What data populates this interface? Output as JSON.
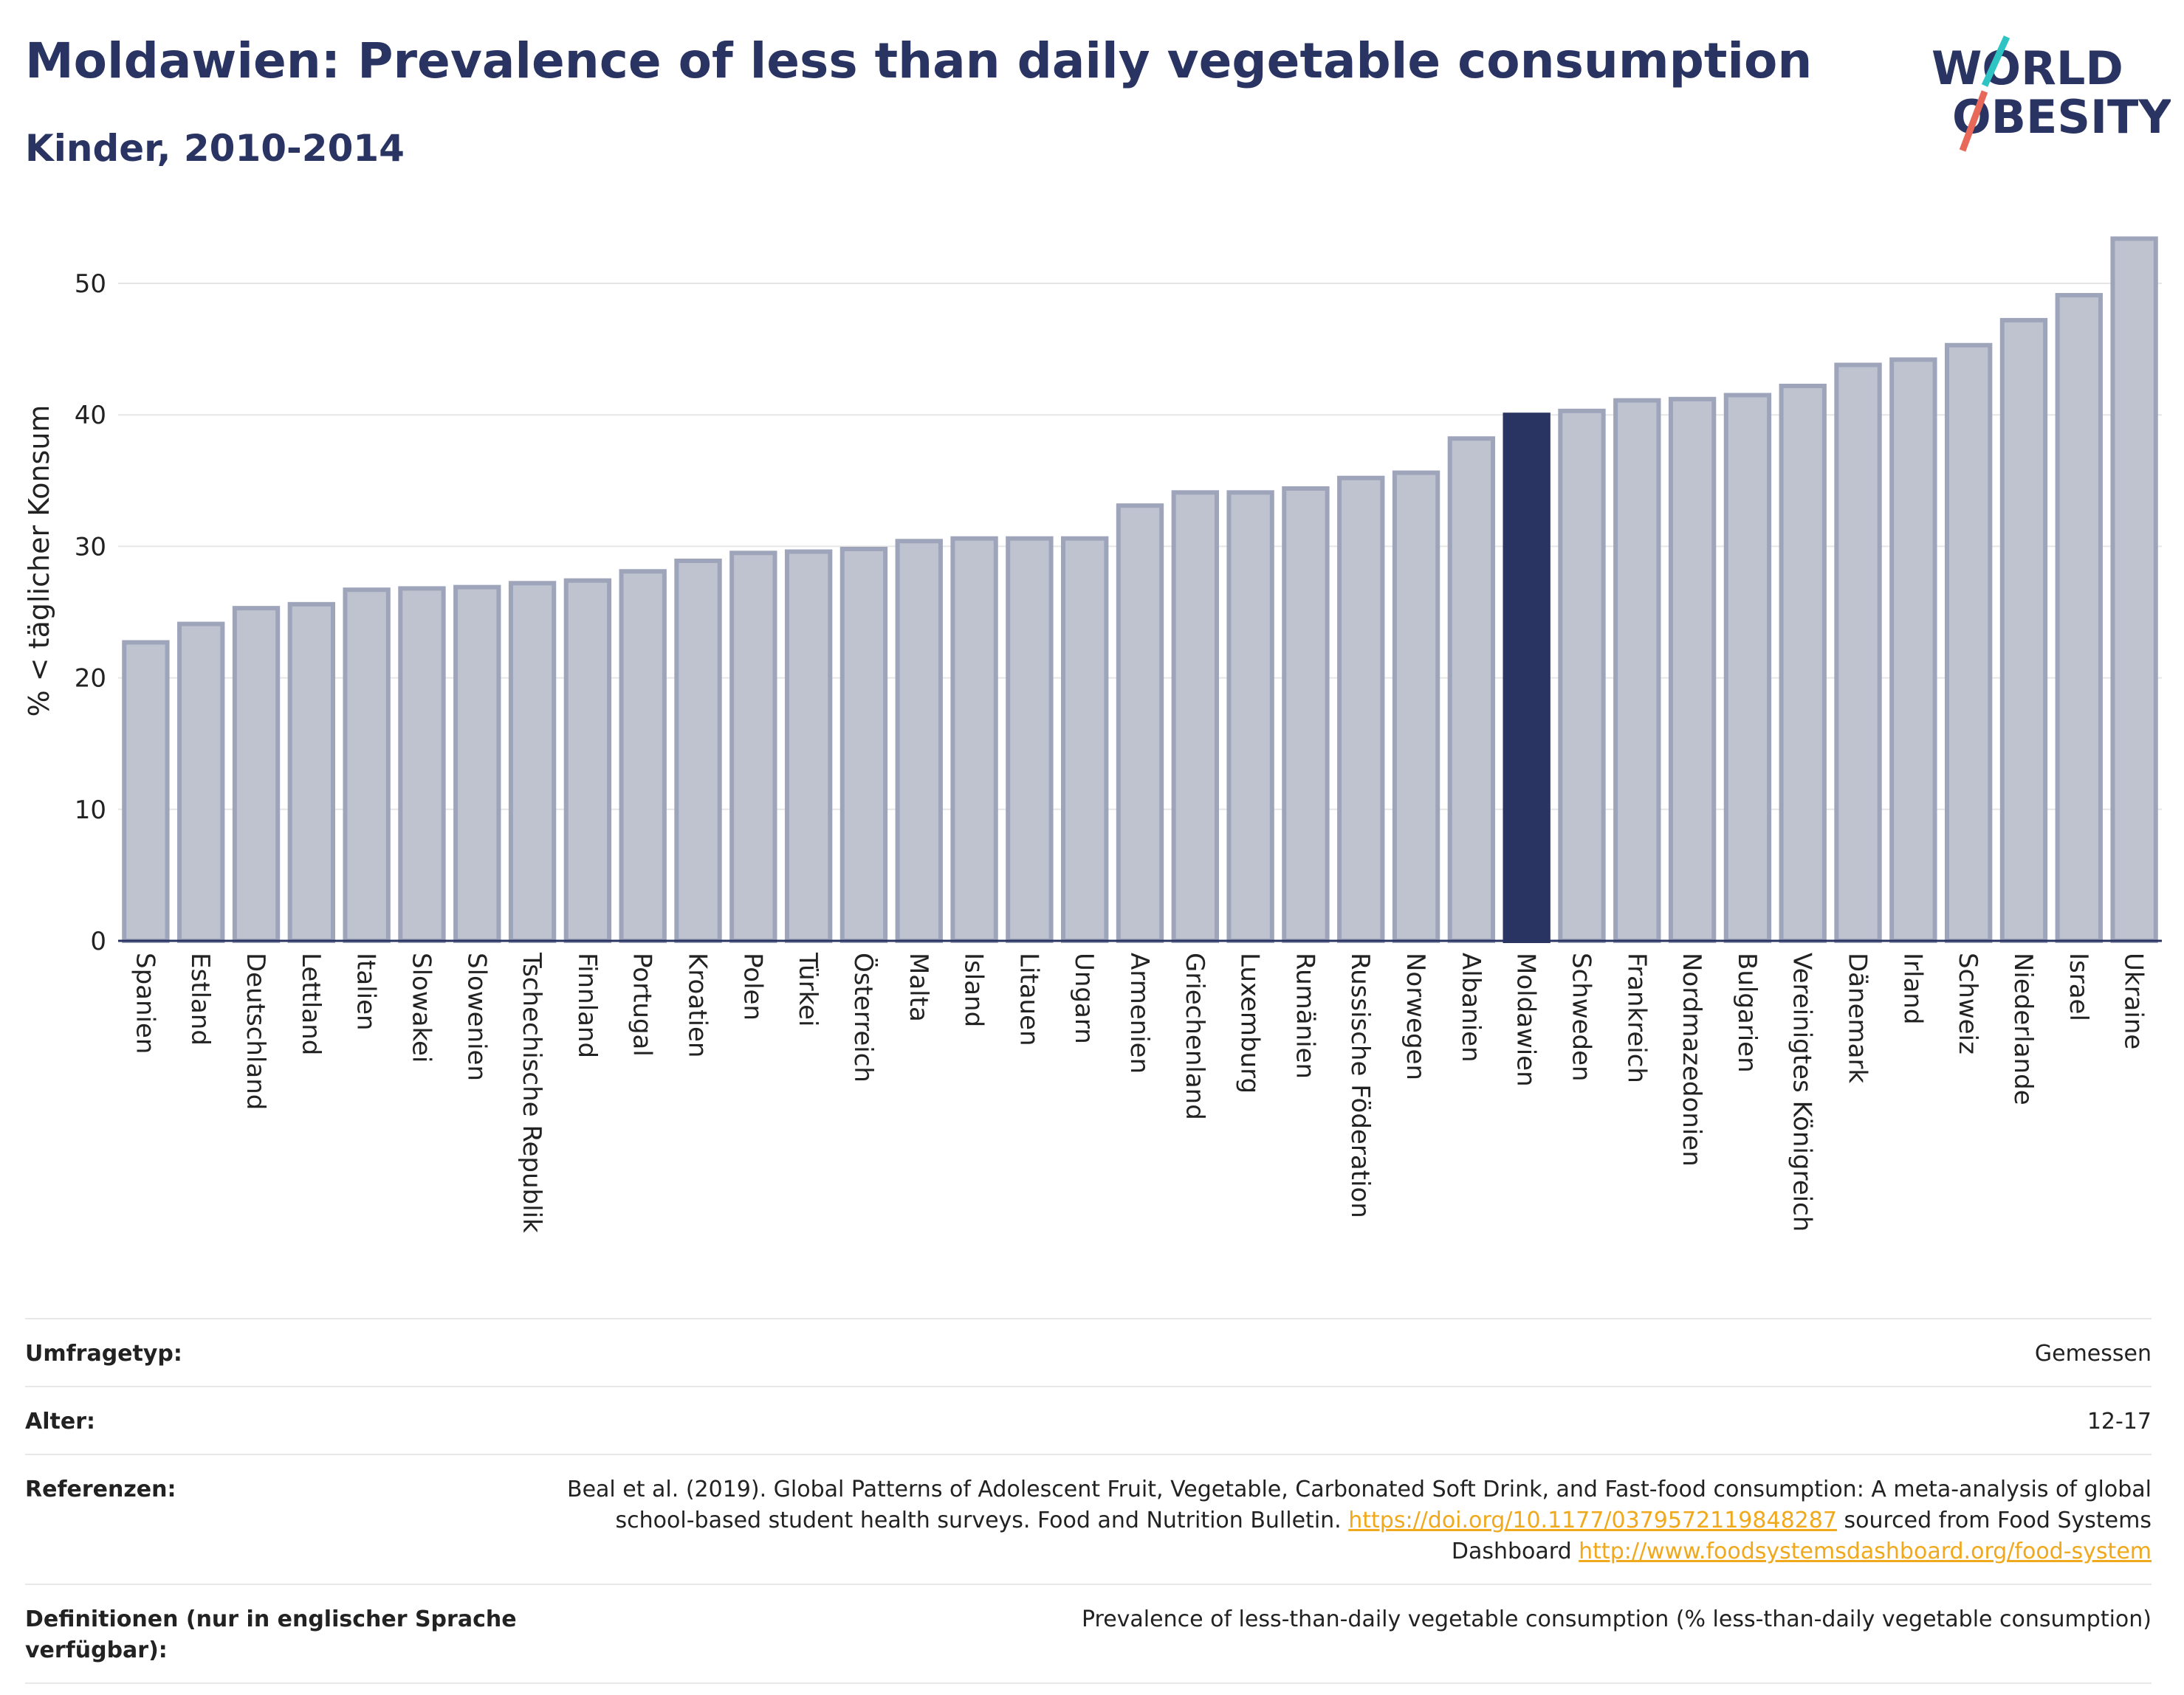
{
  "header": {
    "title": "Moldawien: Prevalence of less than daily vegetable consumption",
    "subtitle": "Kinder, 2010-2014"
  },
  "logo": {
    "line1": "WORLD",
    "line2": "OBESITY"
  },
  "colors": {
    "highlight": "#293462",
    "bar": "#bfc3d0",
    "bar_border": "#9ea4ba",
    "title": "#293462",
    "link": "#f0a81c",
    "logo_slash_teal": "#2ec4c4",
    "logo_slash_red": "#e8685a"
  },
  "chart_data": {
    "type": "bar",
    "ylabel": "% < täglicher Konsum",
    "ylim": [
      0,
      55
    ],
    "yticks": [
      0,
      10,
      20,
      30,
      40,
      50
    ],
    "grid": true,
    "highlight": "Moldawien",
    "categories": [
      "Spanien",
      "Estland",
      "Deutschland",
      "Lettland",
      "Italien",
      "Slowakei",
      "Slowenien",
      "Tschechische Republik",
      "Finnland",
      "Portugal",
      "Kroatien",
      "Polen",
      "Türkei",
      "Österreich",
      "Malta",
      "Island",
      "Litauen",
      "Ungarn",
      "Armenien",
      "Griechenland",
      "Luxemburg",
      "Rumänien",
      "Russische Föderation",
      "Norwegen",
      "Albanien",
      "Moldawien",
      "Schweden",
      "Frankreich",
      "Nordmazedonien",
      "Bulgarien",
      "Vereinigtes Königreich",
      "Dänemark",
      "Irland",
      "Schweiz",
      "Niederlande",
      "Israel",
      "Ukraine"
    ],
    "values": [
      22.7,
      24.1,
      25.3,
      25.6,
      26.7,
      26.8,
      26.9,
      27.2,
      27.4,
      28.1,
      28.9,
      29.5,
      29.6,
      29.8,
      30.4,
      30.6,
      30.6,
      30.6,
      33.1,
      34.1,
      34.1,
      34.4,
      35.2,
      35.6,
      38.2,
      40.0,
      40.3,
      41.1,
      41.2,
      41.5,
      42.2,
      43.8,
      44.2,
      45.3,
      47.2,
      49.1,
      53.4
    ]
  },
  "info": {
    "rows": [
      {
        "key": "Umfragetyp:",
        "value": "Gemessen"
      },
      {
        "key": "Alter:",
        "value": "12-17"
      },
      {
        "key": "Referenzen:",
        "value_prefix": "Beal et al. (2019). Global Patterns of Adolescent Fruit, Vegetable, Carbonated Soft Drink, and Fast-food consumption: A meta-analysis of global school-based student health surveys. Food and Nutrition Bulletin. ",
        "link1": "https://doi.org/10.1177/0379572119848287",
        "value_mid": " sourced from Food Systems Dashboard ",
        "link2": "http://www.foodsystemsdashboard.org/food-system"
      },
      {
        "key": "Definitionen (nur in englischer Sprache verfügbar):",
        "value": "Prevalence of less-than-daily vegetable consumption (% less-than-daily vegetable consumption)"
      }
    ]
  }
}
